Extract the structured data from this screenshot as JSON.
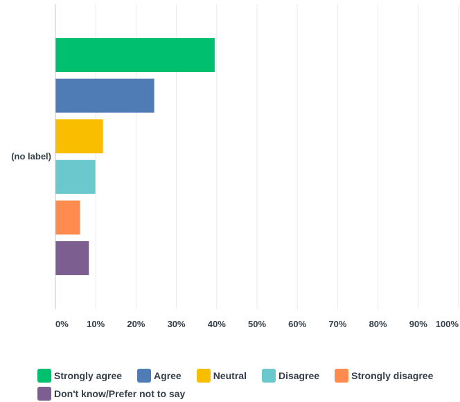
{
  "chart_data": {
    "type": "bar",
    "orientation": "horizontal",
    "categories": [
      "(no label)"
    ],
    "series": [
      {
        "name": "Strongly agree",
        "values": [
          39.5
        ],
        "color": "#00bf6f"
      },
      {
        "name": "Agree",
        "values": [
          24.5
        ],
        "color": "#507cb6"
      },
      {
        "name": "Neutral",
        "values": [
          11.8
        ],
        "color": "#f9be00"
      },
      {
        "name": "Disagree",
        "values": [
          9.9
        ],
        "color": "#6bc8cd"
      },
      {
        "name": "Strongly disagree",
        "values": [
          6.1
        ],
        "color": "#ff8b4f"
      },
      {
        "name": "Don't know/Prefer not to say",
        "values": [
          8.3
        ],
        "color": "#7d5e90"
      }
    ],
    "x_ticks": [
      "0%",
      "10%",
      "20%",
      "30%",
      "40%",
      "50%",
      "60%",
      "70%",
      "80%",
      "90%",
      "100%"
    ],
    "xlim": [
      0,
      100
    ],
    "grid": true,
    "legend_position": "bottom"
  }
}
